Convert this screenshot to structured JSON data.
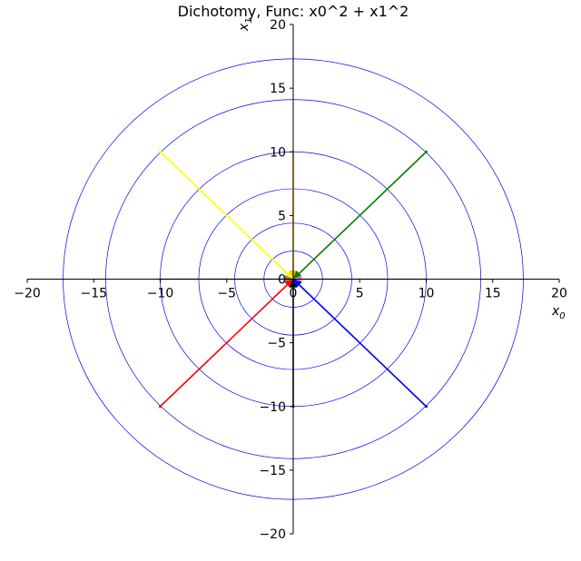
{
  "chart_data": {
    "type": "line",
    "title": "Dichotomy, Func: x0^2 + x1^2",
    "xlabel": "x",
    "xlabel_sub": "0",
    "ylabel": "x",
    "ylabel_sub": "1",
    "xlim": [
      -20,
      20
    ],
    "ylim": [
      -20,
      20
    ],
    "xticks": [
      -20,
      -15,
      -10,
      -5,
      0,
      5,
      10,
      15,
      20
    ],
    "yticks": [
      -20,
      -15,
      -10,
      -5,
      0,
      5,
      10,
      15,
      20
    ],
    "xtick_labels": [
      "−20",
      "−15",
      "−10",
      "−5",
      "0",
      "5",
      "10",
      "15",
      "20"
    ],
    "ytick_labels": [
      "−20",
      "−15",
      "−10",
      "−5",
      "0",
      "5",
      "10",
      "15",
      "20"
    ],
    "grid": false,
    "contour_color": "#0000ff",
    "contour_radii": [
      2.2,
      4.4,
      7.1,
      10,
      14.1,
      17.3
    ],
    "series": [
      {
        "color": "#ffa500",
        "x": [
          0,
          0
        ],
        "y": [
          10,
          0
        ]
      },
      {
        "color": "#008000",
        "x": [
          10,
          0
        ],
        "y": [
          10,
          0
        ]
      },
      {
        "color": "#ffff00",
        "x": [
          -10,
          0
        ],
        "y": [
          10,
          0
        ]
      },
      {
        "color": "#808080",
        "x": [
          -10,
          0
        ],
        "y": [
          0,
          0
        ]
      },
      {
        "color": "#f08080",
        "x": [
          10,
          0
        ],
        "y": [
          0,
          0
        ]
      },
      {
        "color": "#ff0000",
        "x": [
          -10,
          0
        ],
        "y": [
          -10,
          0
        ]
      },
      {
        "color": "#000000",
        "x": [
          0,
          0
        ],
        "y": [
          -10,
          0
        ]
      },
      {
        "color": "#0000ff",
        "x": [
          10,
          0
        ],
        "y": [
          -10,
          0
        ]
      }
    ]
  }
}
